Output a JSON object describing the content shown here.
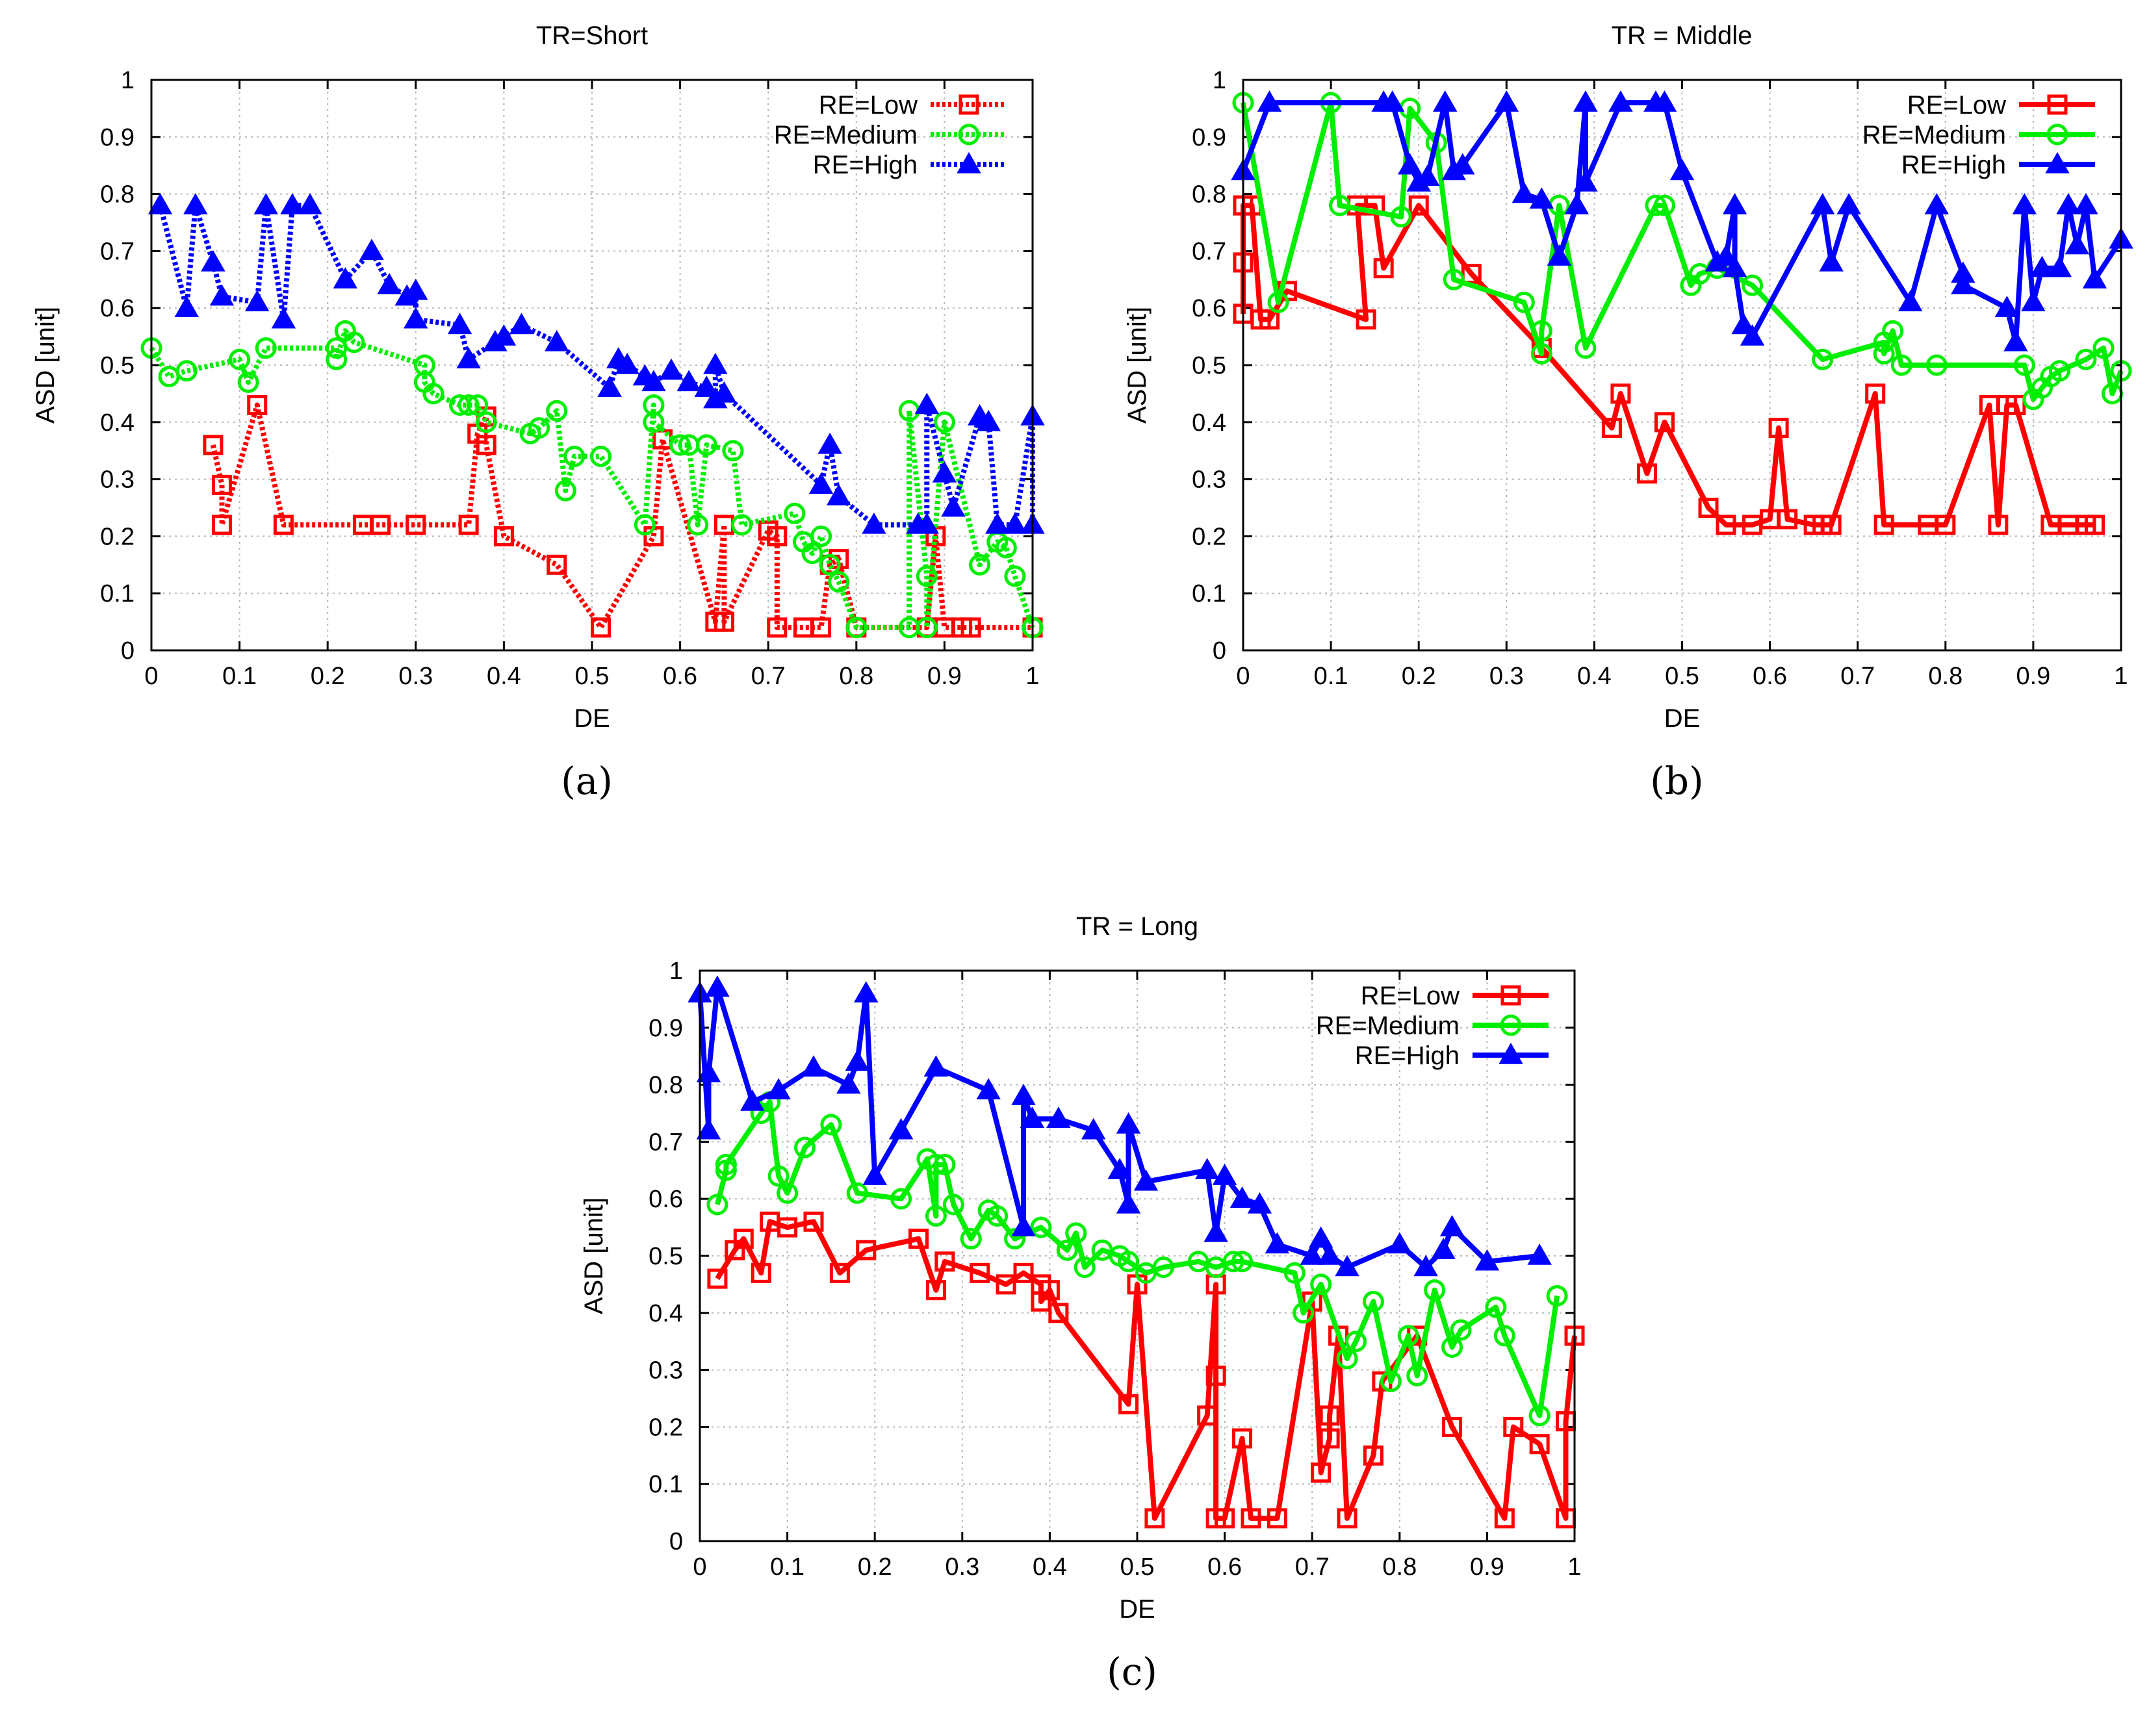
{
  "chart_data": [
    {
      "type": "line",
      "title": "TR=Short",
      "panel_label": "(a)",
      "xlabel": "DE",
      "ylabel": "ASD [unit]",
      "xlim": [
        0,
        1
      ],
      "ylim": [
        0,
        1
      ],
      "xticks": [
        "0",
        "0.1",
        "0.2",
        "0.3",
        "0.4",
        "0.5",
        "0.6",
        "0.7",
        "0.8",
        "0.9",
        "1"
      ],
      "yticks": [
        "0",
        "0.1",
        "0.2",
        "0.3",
        "0.4",
        "0.5",
        "0.6",
        "0.7",
        "0.8",
        "0.9",
        "1"
      ],
      "grid": true,
      "line_style": "dotted",
      "legend_position": "top-right",
      "series": [
        {
          "name": "RE=Low",
          "color": "#ff0000",
          "marker": "square",
          "x": [
            0.07,
            0.08,
            0.08,
            0.12,
            0.15,
            0.24,
            0.26,
            0.3,
            0.36,
            0.37,
            0.38,
            0.38,
            0.4,
            0.46,
            0.51,
            0.57,
            0.58,
            0.64,
            0.65,
            0.65,
            0.7,
            0.71,
            0.71,
            0.74,
            0.76,
            0.77,
            0.78,
            0.8,
            0.88,
            0.89,
            0.9,
            0.92,
            0.93,
            1.0
          ],
          "y": [
            0.36,
            0.29,
            0.22,
            0.43,
            0.22,
            0.22,
            0.22,
            0.22,
            0.22,
            0.38,
            0.41,
            0.36,
            0.2,
            0.15,
            0.04,
            0.2,
            0.37,
            0.05,
            0.22,
            0.05,
            0.21,
            0.2,
            0.04,
            0.04,
            0.04,
            0.15,
            0.16,
            0.04,
            0.04,
            0.2,
            0.04,
            0.04,
            0.04,
            0.04
          ]
        },
        {
          "name": "RE=Medium",
          "color": "#00ee00",
          "marker": "circle",
          "x": [
            0.0,
            0.02,
            0.04,
            0.1,
            0.11,
            0.13,
            0.21,
            0.21,
            0.22,
            0.23,
            0.31,
            0.31,
            0.32,
            0.35,
            0.36,
            0.37,
            0.38,
            0.43,
            0.44,
            0.46,
            0.47,
            0.48,
            0.51,
            0.56,
            0.57,
            0.57,
            0.6,
            0.61,
            0.62,
            0.63,
            0.66,
            0.67,
            0.73,
            0.74,
            0.75,
            0.76,
            0.77,
            0.78,
            0.8,
            0.86,
            0.86,
            0.88,
            0.88,
            0.9,
            0.94,
            0.96,
            0.97,
            0.98,
            1.0
          ],
          "y": [
            0.53,
            0.48,
            0.49,
            0.51,
            0.47,
            0.53,
            0.53,
            0.51,
            0.56,
            0.54,
            0.5,
            0.47,
            0.45,
            0.43,
            0.43,
            0.43,
            0.4,
            0.38,
            0.39,
            0.42,
            0.28,
            0.34,
            0.34,
            0.22,
            0.43,
            0.4,
            0.36,
            0.36,
            0.22,
            0.36,
            0.35,
            0.22,
            0.24,
            0.19,
            0.17,
            0.2,
            0.15,
            0.12,
            0.04,
            0.04,
            0.42,
            0.13,
            0.04,
            0.4,
            0.15,
            0.19,
            0.18,
            0.13,
            0.04
          ]
        },
        {
          "name": "RE=High",
          "color": "#0000ff",
          "marker": "triangle",
          "x": [
            0.01,
            0.04,
            0.05,
            0.07,
            0.08,
            0.12,
            0.13,
            0.15,
            0.16,
            0.18,
            0.22,
            0.25,
            0.27,
            0.29,
            0.3,
            0.3,
            0.35,
            0.36,
            0.39,
            0.4,
            0.42,
            0.46,
            0.52,
            0.53,
            0.54,
            0.56,
            0.57,
            0.59,
            0.61,
            0.63,
            0.64,
            0.64,
            0.65,
            0.76,
            0.77,
            0.78,
            0.82,
            0.87,
            0.88,
            0.88,
            0.9,
            0.91,
            0.94,
            0.95,
            0.96,
            0.98,
            1.0,
            1.0
          ],
          "y": [
            0.78,
            0.6,
            0.78,
            0.68,
            0.62,
            0.61,
            0.78,
            0.58,
            0.78,
            0.78,
            0.65,
            0.7,
            0.64,
            0.62,
            0.63,
            0.58,
            0.57,
            0.51,
            0.54,
            0.55,
            0.57,
            0.54,
            0.46,
            0.51,
            0.5,
            0.48,
            0.47,
            0.49,
            0.47,
            0.46,
            0.44,
            0.5,
            0.45,
            0.29,
            0.36,
            0.27,
            0.22,
            0.22,
            0.22,
            0.43,
            0.31,
            0.25,
            0.41,
            0.4,
            0.22,
            0.22,
            0.41,
            0.22
          ]
        }
      ]
    },
    {
      "type": "line",
      "title": "TR = Middle",
      "panel_label": "(b)",
      "xlabel": "DE",
      "ylabel": "ASD [unit]",
      "xlim": [
        0,
        1
      ],
      "ylim": [
        0,
        1
      ],
      "xticks": [
        "0",
        "0.1",
        "0.2",
        "0.3",
        "0.4",
        "0.5",
        "0.6",
        "0.7",
        "0.8",
        "0.9",
        "1"
      ],
      "yticks": [
        "0",
        "0.1",
        "0.2",
        "0.3",
        "0.4",
        "0.5",
        "0.6",
        "0.7",
        "0.8",
        "0.9",
        "1"
      ],
      "grid": true,
      "line_style": "solid",
      "legend_position": "top-right",
      "series": [
        {
          "name": "RE=Low",
          "color": "#ff0000",
          "marker": "square",
          "x": [
            0.0,
            0.0,
            0.0,
            0.01,
            0.02,
            0.03,
            0.05,
            0.14,
            0.13,
            0.15,
            0.16,
            0.2,
            0.26,
            0.34,
            0.42,
            0.43,
            0.46,
            0.48,
            0.53,
            0.55,
            0.58,
            0.6,
            0.61,
            0.62,
            0.65,
            0.66,
            0.67,
            0.72,
            0.73,
            0.78,
            0.8,
            0.85,
            0.86,
            0.87,
            0.88,
            0.92,
            0.94,
            0.96,
            0.97
          ],
          "y": [
            0.59,
            0.68,
            0.78,
            0.78,
            0.58,
            0.58,
            0.63,
            0.58,
            0.78,
            0.78,
            0.67,
            0.78,
            0.66,
            0.53,
            0.39,
            0.45,
            0.31,
            0.4,
            0.25,
            0.22,
            0.22,
            0.23,
            0.39,
            0.23,
            0.22,
            0.22,
            0.22,
            0.45,
            0.22,
            0.22,
            0.22,
            0.43,
            0.22,
            0.43,
            0.43,
            0.22,
            0.22,
            0.22,
            0.22
          ]
        },
        {
          "name": "RE=Medium",
          "color": "#00ee00",
          "marker": "circle",
          "x": [
            0.0,
            0.04,
            0.1,
            0.11,
            0.18,
            0.19,
            0.22,
            0.24,
            0.32,
            0.34,
            0.34,
            0.36,
            0.39,
            0.47,
            0.48,
            0.51,
            0.52,
            0.54,
            0.58,
            0.66,
            0.73,
            0.73,
            0.74,
            0.75,
            0.79,
            0.89,
            0.9,
            0.91,
            0.92,
            0.93,
            0.96,
            0.98,
            0.99,
            1.0
          ],
          "y": [
            0.96,
            0.61,
            0.96,
            0.78,
            0.76,
            0.95,
            0.89,
            0.65,
            0.61,
            0.52,
            0.56,
            0.78,
            0.53,
            0.78,
            0.78,
            0.64,
            0.66,
            0.67,
            0.64,
            0.51,
            0.54,
            0.52,
            0.56,
            0.5,
            0.5,
            0.5,
            0.44,
            0.46,
            0.48,
            0.49,
            0.51,
            0.53,
            0.45,
            0.49
          ]
        },
        {
          "name": "RE=High",
          "color": "#0000ff",
          "marker": "triangle",
          "x": [
            0.0,
            0.03,
            0.16,
            0.17,
            0.19,
            0.2,
            0.21,
            0.23,
            0.24,
            0.25,
            0.3,
            0.32,
            0.34,
            0.36,
            0.38,
            0.39,
            0.39,
            0.43,
            0.47,
            0.48,
            0.5,
            0.54,
            0.55,
            0.56,
            0.56,
            0.57,
            0.58,
            0.66,
            0.67,
            0.69,
            0.76,
            0.79,
            0.82,
            0.82,
            0.87,
            0.88,
            0.89,
            0.9,
            0.91,
            0.93,
            0.94,
            0.95,
            0.96,
            0.97,
            1.0
          ],
          "y": [
            0.84,
            0.96,
            0.96,
            0.96,
            0.85,
            0.82,
            0.83,
            0.96,
            0.84,
            0.85,
            0.96,
            0.8,
            0.79,
            0.69,
            0.78,
            0.96,
            0.82,
            0.96,
            0.96,
            0.96,
            0.84,
            0.68,
            0.69,
            0.78,
            0.67,
            0.57,
            0.55,
            0.78,
            0.68,
            0.78,
            0.61,
            0.78,
            0.66,
            0.64,
            0.6,
            0.54,
            0.78,
            0.61,
            0.67,
            0.67,
            0.78,
            0.71,
            0.78,
            0.65,
            0.72
          ]
        }
      ]
    },
    {
      "type": "line",
      "title": "TR = Long",
      "panel_label": "(c)",
      "xlabel": "DE",
      "ylabel": "ASD [unit]",
      "xlim": [
        0,
        1
      ],
      "ylim": [
        0,
        1
      ],
      "xticks": [
        "0",
        "0.1",
        "0.2",
        "0.3",
        "0.4",
        "0.5",
        "0.6",
        "0.7",
        "0.8",
        "0.9",
        "1"
      ],
      "yticks": [
        "0",
        "0.1",
        "0.2",
        "0.3",
        "0.4",
        "0.5",
        "0.6",
        "0.7",
        "0.8",
        "0.9",
        "1"
      ],
      "grid": true,
      "line_style": "solid",
      "legend_position": "top-right",
      "series": [
        {
          "name": "RE=Low",
          "color": "#ff0000",
          "marker": "square",
          "x": [
            0.02,
            0.04,
            0.05,
            0.07,
            0.08,
            0.1,
            0.13,
            0.16,
            0.19,
            0.25,
            0.27,
            0.28,
            0.32,
            0.35,
            0.37,
            0.39,
            0.39,
            0.4,
            0.41,
            0.49,
            0.5,
            0.52,
            0.58,
            0.59,
            0.59,
            0.59,
            0.6,
            0.62,
            0.63,
            0.66,
            0.7,
            0.71,
            0.72,
            0.72,
            0.73,
            0.74,
            0.77,
            0.78,
            0.82,
            0.86,
            0.92,
            0.93,
            0.96,
            0.99,
            0.99,
            1.0
          ],
          "y": [
            0.46,
            0.51,
            0.53,
            0.47,
            0.56,
            0.55,
            0.56,
            0.47,
            0.51,
            0.53,
            0.44,
            0.49,
            0.47,
            0.45,
            0.47,
            0.45,
            0.42,
            0.44,
            0.4,
            0.24,
            0.45,
            0.04,
            0.22,
            0.45,
            0.29,
            0.04,
            0.04,
            0.18,
            0.04,
            0.04,
            0.42,
            0.12,
            0.18,
            0.22,
            0.36,
            0.04,
            0.15,
            0.28,
            0.36,
            0.2,
            0.04,
            0.2,
            0.17,
            0.04,
            0.21,
            0.36
          ]
        },
        {
          "name": "RE=Medium",
          "color": "#00ee00",
          "marker": "circle",
          "x": [
            0.02,
            0.03,
            0.03,
            0.07,
            0.08,
            0.09,
            0.1,
            0.12,
            0.15,
            0.18,
            0.23,
            0.26,
            0.27,
            0.27,
            0.28,
            0.29,
            0.31,
            0.33,
            0.34,
            0.36,
            0.39,
            0.42,
            0.43,
            0.44,
            0.46,
            0.48,
            0.49,
            0.51,
            0.53,
            0.57,
            0.59,
            0.61,
            0.62,
            0.68,
            0.69,
            0.71,
            0.74,
            0.75,
            0.77,
            0.79,
            0.81,
            0.82,
            0.84,
            0.86,
            0.87,
            0.91,
            0.92,
            0.96,
            0.98
          ],
          "y": [
            0.59,
            0.65,
            0.66,
            0.75,
            0.77,
            0.64,
            0.61,
            0.69,
            0.73,
            0.61,
            0.6,
            0.67,
            0.57,
            0.66,
            0.66,
            0.59,
            0.53,
            0.58,
            0.57,
            0.53,
            0.55,
            0.51,
            0.54,
            0.48,
            0.51,
            0.5,
            0.49,
            0.47,
            0.48,
            0.49,
            0.48,
            0.49,
            0.49,
            0.47,
            0.4,
            0.45,
            0.32,
            0.35,
            0.42,
            0.28,
            0.36,
            0.29,
            0.44,
            0.34,
            0.37,
            0.41,
            0.36,
            0.22,
            0.43
          ]
        },
        {
          "name": "RE=High",
          "color": "#0000ff",
          "marker": "triangle",
          "x": [
            0.0,
            0.01,
            0.01,
            0.02,
            0.06,
            0.09,
            0.13,
            0.17,
            0.18,
            0.19,
            0.2,
            0.23,
            0.27,
            0.33,
            0.37,
            0.37,
            0.38,
            0.41,
            0.45,
            0.48,
            0.49,
            0.49,
            0.51,
            0.58,
            0.59,
            0.6,
            0.62,
            0.64,
            0.66,
            0.7,
            0.71,
            0.72,
            0.74,
            0.8,
            0.83,
            0.85,
            0.86,
            0.9,
            0.96
          ],
          "y": [
            0.96,
            0.72,
            0.82,
            0.97,
            0.77,
            0.79,
            0.83,
            0.8,
            0.84,
            0.96,
            0.64,
            0.72,
            0.83,
            0.79,
            0.55,
            0.78,
            0.74,
            0.74,
            0.72,
            0.65,
            0.59,
            0.73,
            0.63,
            0.65,
            0.54,
            0.64,
            0.6,
            0.59,
            0.52,
            0.5,
            0.53,
            0.5,
            0.48,
            0.52,
            0.48,
            0.51,
            0.55,
            0.49,
            0.5
          ]
        }
      ]
    }
  ]
}
